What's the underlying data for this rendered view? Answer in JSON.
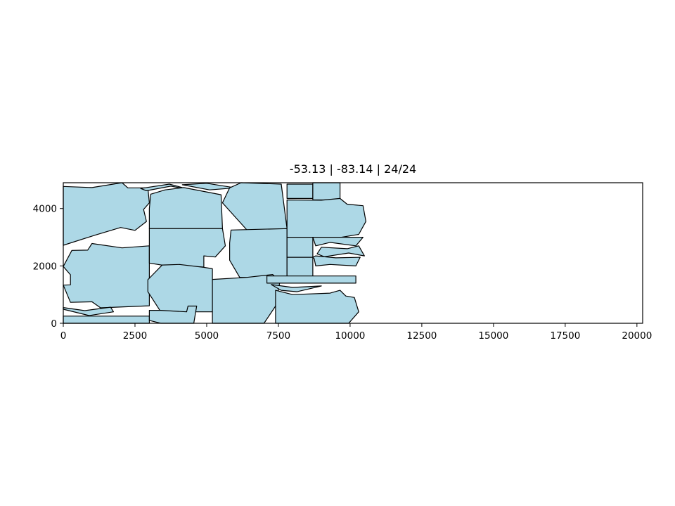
{
  "chart_data": {
    "type": "polygon-packing",
    "title": "-53.13 | -83.14 | 24/24",
    "xlabel": "",
    "ylabel": "",
    "xlim": [
      0,
      20200
    ],
    "ylim": [
      0,
      4900
    ],
    "x_ticks": [
      0,
      2500,
      5000,
      7500,
      10000,
      12500,
      15000,
      17500,
      20000
    ],
    "y_ticks": [
      0,
      2000,
      4000
    ],
    "grid": false,
    "fill_color": "#add8e6",
    "edge_color": "#000000",
    "polygons": [
      {
        "name": "piece-1",
        "points": [
          [
            0,
            4770
          ],
          [
            1000,
            4730
          ],
          [
            2050,
            4900
          ],
          [
            2250,
            4720
          ],
          [
            2950,
            4720
          ],
          [
            3000,
            4200
          ],
          [
            2800,
            3970
          ],
          [
            2900,
            3550
          ],
          [
            2500,
            3240
          ],
          [
            2000,
            3340
          ],
          [
            1100,
            3070
          ],
          [
            0,
            2720
          ]
        ]
      },
      {
        "name": "piece-2",
        "points": [
          [
            0,
            1980
          ],
          [
            250,
            1690
          ],
          [
            250,
            1340
          ],
          [
            0,
            1330
          ],
          [
            250,
            730
          ],
          [
            1000,
            750
          ],
          [
            1300,
            540
          ],
          [
            3000,
            610
          ],
          [
            3000,
            2700
          ],
          [
            2050,
            2630
          ],
          [
            1000,
            2780
          ],
          [
            850,
            2550
          ],
          [
            300,
            2540
          ]
        ]
      },
      {
        "name": "piece-3",
        "points": [
          [
            0,
            490
          ],
          [
            900,
            270
          ],
          [
            1750,
            400
          ],
          [
            1650,
            560
          ],
          [
            750,
            440
          ],
          [
            0,
            550
          ]
        ]
      },
      {
        "name": "piece-4",
        "points": [
          [
            0,
            0
          ],
          [
            3000,
            0
          ],
          [
            3000,
            250
          ],
          [
            0,
            250
          ]
        ]
      },
      {
        "name": "piece-5",
        "points": [
          [
            2700,
            4700
          ],
          [
            3700,
            4850
          ],
          [
            4450,
            4650
          ],
          [
            3750,
            4780
          ],
          [
            2900,
            4620
          ]
        ]
      },
      {
        "name": "piece-6",
        "points": [
          [
            4150,
            4830
          ],
          [
            5000,
            4880
          ],
          [
            6000,
            4720
          ],
          [
            5100,
            4650
          ]
        ]
      },
      {
        "name": "piece-7",
        "points": [
          [
            3050,
            4500
          ],
          [
            3550,
            4650
          ],
          [
            4200,
            4730
          ],
          [
            5500,
            4480
          ],
          [
            5550,
            3300
          ],
          [
            3000,
            3300
          ],
          [
            3000,
            4000
          ]
        ]
      },
      {
        "name": "piece-8",
        "points": [
          [
            3000,
            3300
          ],
          [
            5550,
            3300
          ],
          [
            5650,
            2700
          ],
          [
            5300,
            2310
          ],
          [
            4900,
            2350
          ],
          [
            4900,
            1960
          ],
          [
            3500,
            2020
          ],
          [
            3000,
            2100
          ]
        ]
      },
      {
        "name": "piece-9",
        "points": [
          [
            3450,
            2030
          ],
          [
            4050,
            2050
          ],
          [
            4900,
            1950
          ],
          [
            5200,
            1900
          ],
          [
            5200,
            400
          ],
          [
            3400,
            400
          ],
          [
            2950,
            1100
          ],
          [
            2950,
            1520
          ]
        ]
      },
      {
        "name": "piece-10",
        "points": [
          [
            3000,
            450
          ],
          [
            3400,
            450
          ],
          [
            4300,
            400
          ],
          [
            4350,
            600
          ],
          [
            4650,
            600
          ],
          [
            4550,
            0
          ],
          [
            3400,
            0
          ],
          [
            3000,
            100
          ]
        ]
      },
      {
        "name": "piece-11",
        "points": [
          [
            5550,
            4200
          ],
          [
            5800,
            4720
          ],
          [
            6200,
            4900
          ],
          [
            7600,
            4850
          ],
          [
            7800,
            3300
          ],
          [
            6450,
            3200
          ]
        ]
      },
      {
        "name": "piece-12",
        "points": [
          [
            5800,
            2200
          ],
          [
            6150,
            1600
          ],
          [
            7800,
            1600
          ],
          [
            7800,
            3300
          ],
          [
            5850,
            3250
          ],
          [
            5800,
            2800
          ]
        ]
      },
      {
        "name": "piece-13",
        "points": [
          [
            5200,
            1530
          ],
          [
            6400,
            1600
          ],
          [
            7300,
            1700
          ],
          [
            7550,
            1450
          ],
          [
            7400,
            600
          ],
          [
            7000,
            0
          ],
          [
            5200,
            0
          ],
          [
            5200,
            500
          ]
        ]
      },
      {
        "name": "piece-14",
        "points": [
          [
            7800,
            4850
          ],
          [
            8700,
            4850
          ],
          [
            8700,
            4350
          ],
          [
            7800,
            4350
          ]
        ]
      },
      {
        "name": "piece-15",
        "points": [
          [
            8700,
            4900
          ],
          [
            9650,
            4900
          ],
          [
            9650,
            4300
          ],
          [
            8700,
            4300
          ]
        ]
      },
      {
        "name": "piece-16",
        "points": [
          [
            7800,
            4300
          ],
          [
            9000,
            4290
          ],
          [
            9650,
            4350
          ],
          [
            9900,
            4150
          ],
          [
            10450,
            4100
          ],
          [
            10550,
            3550
          ],
          [
            10300,
            3100
          ],
          [
            9700,
            3000
          ],
          [
            7800,
            3000
          ]
        ]
      },
      {
        "name": "piece-17",
        "points": [
          [
            8700,
            3000
          ],
          [
            10450,
            3000
          ],
          [
            10200,
            2700
          ],
          [
            9300,
            2820
          ],
          [
            8800,
            2700
          ]
        ]
      },
      {
        "name": "piece-18",
        "points": [
          [
            7800,
            3000
          ],
          [
            8700,
            3000
          ],
          [
            8700,
            2300
          ],
          [
            7800,
            2300
          ]
        ]
      },
      {
        "name": "piece-19",
        "points": [
          [
            7800,
            2300
          ],
          [
            8700,
            2300
          ],
          [
            8700,
            1600
          ],
          [
            7800,
            1600
          ]
        ]
      },
      {
        "name": "piece-20",
        "points": [
          [
            9000,
            2650
          ],
          [
            9900,
            2600
          ],
          [
            10300,
            2700
          ],
          [
            10500,
            2350
          ],
          [
            9950,
            2450
          ],
          [
            9100,
            2320
          ],
          [
            8850,
            2420
          ]
        ]
      },
      {
        "name": "piece-21",
        "points": [
          [
            8700,
            2300
          ],
          [
            8800,
            2350
          ],
          [
            9500,
            2280
          ],
          [
            10350,
            2300
          ],
          [
            10200,
            2000
          ],
          [
            9300,
            2050
          ],
          [
            8800,
            2000
          ],
          [
            8750,
            2250
          ]
        ]
      },
      {
        "name": "piece-22",
        "points": [
          [
            7100,
            1400
          ],
          [
            10200,
            1400
          ],
          [
            10200,
            1650
          ],
          [
            7100,
            1650
          ]
        ]
      },
      {
        "name": "piece-23",
        "points": [
          [
            7250,
            1350
          ],
          [
            8000,
            1250
          ],
          [
            9000,
            1300
          ],
          [
            8150,
            1100
          ],
          [
            7600,
            1150
          ]
        ]
      },
      {
        "name": "piece-24",
        "points": [
          [
            7400,
            1150
          ],
          [
            8000,
            1000
          ],
          [
            9300,
            1050
          ],
          [
            9650,
            1150
          ],
          [
            9850,
            950
          ],
          [
            10150,
            900
          ],
          [
            10300,
            400
          ],
          [
            9950,
            0
          ],
          [
            7400,
            0
          ]
        ]
      }
    ]
  }
}
